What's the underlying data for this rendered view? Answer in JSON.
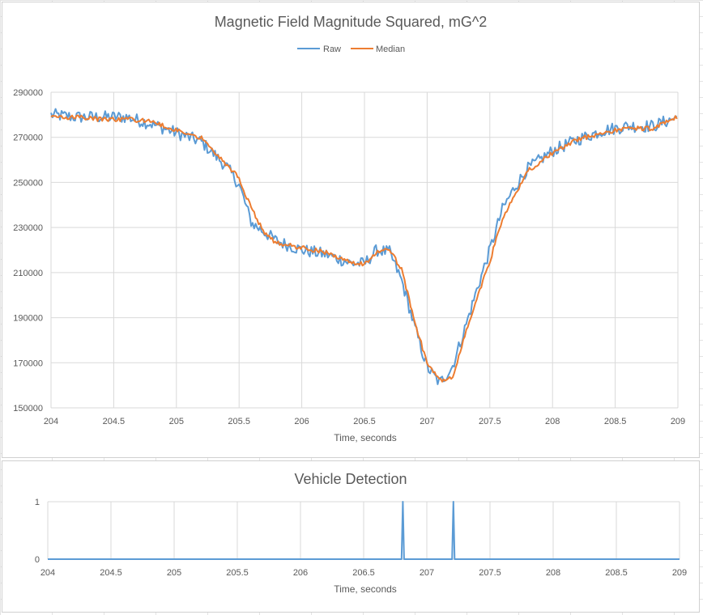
{
  "chart_data": [
    {
      "type": "line",
      "title": "Magnetic Field Magnitude Squared, mG^2",
      "xlabel": "Time, seconds",
      "ylabel": "",
      "xlim": [
        204,
        209
      ],
      "ylim": [
        150000,
        290000
      ],
      "xticks": [
        "204",
        "204.5",
        "205",
        "205.5",
        "206",
        "206.5",
        "207",
        "207.5",
        "208",
        "208.5",
        "209"
      ],
      "yticks": [
        "150000",
        "170000",
        "190000",
        "210000",
        "230000",
        "250000",
        "270000",
        "290000"
      ],
      "grid": true,
      "legend": "top-center",
      "series": [
        {
          "name": "Raw",
          "color": "#5b9bd5",
          "x": [
            204.0,
            204.2,
            204.4,
            204.6,
            204.8,
            205.0,
            205.2,
            205.4,
            205.5,
            205.6,
            205.8,
            206.0,
            206.2,
            206.4,
            206.5,
            206.6,
            206.7,
            206.8,
            206.9,
            207.0,
            207.1,
            207.2,
            207.3,
            207.4,
            207.5,
            207.6,
            207.7,
            207.8,
            208.0,
            208.2,
            208.4,
            208.6,
            208.8,
            209.0
          ],
          "y": [
            280000,
            279000,
            279000,
            279000,
            276000,
            272000,
            268000,
            257000,
            249000,
            232000,
            224000,
            220000,
            218000,
            214000,
            214000,
            220000,
            219000,
            206000,
            186000,
            168000,
            161000,
            168000,
            185000,
            203000,
            220000,
            238000,
            248000,
            256000,
            264000,
            269000,
            273000,
            275000,
            275000,
            279000
          ],
          "jitter": 2800
        },
        {
          "name": "Median",
          "color": "#ed7d31",
          "x": [
            204.0,
            204.2,
            204.4,
            204.6,
            204.8,
            205.0,
            205.2,
            205.3,
            205.5,
            205.6,
            205.7,
            205.8,
            206.0,
            206.2,
            206.4,
            206.5,
            206.6,
            206.7,
            206.8,
            206.9,
            207.0,
            207.1,
            207.2,
            207.3,
            207.4,
            207.5,
            207.6,
            207.7,
            207.8,
            208.0,
            208.2,
            208.4,
            208.6,
            208.8,
            209.0
          ],
          "y": [
            279000,
            279000,
            278000,
            278000,
            277000,
            273000,
            270000,
            264000,
            252000,
            238000,
            228000,
            223000,
            221000,
            219000,
            214000,
            214000,
            219000,
            220000,
            211000,
            188000,
            170000,
            162000,
            163000,
            182000,
            199000,
            215000,
            234000,
            244000,
            255000,
            263000,
            269000,
            272000,
            274000,
            274000,
            279000
          ],
          "jitter": 1000
        }
      ]
    },
    {
      "type": "line",
      "title": "Vehicle Detection",
      "xlabel": "Time, seconds",
      "ylabel": "",
      "xlim": [
        204,
        209
      ],
      "ylim": [
        0,
        1
      ],
      "xticks": [
        "204",
        "204.5",
        "205",
        "205.5",
        "206",
        "206.5",
        "207",
        "207.5",
        "208",
        "208.5",
        "209"
      ],
      "yticks": [
        "0",
        "1"
      ],
      "grid": true,
      "series": [
        {
          "name": "",
          "color": "#5b9bd5",
          "x": [
            204.0,
            206.8,
            206.81,
            206.82,
            207.2,
            207.21,
            207.22,
            209.0
          ],
          "y": [
            0,
            0,
            1,
            0,
            0,
            1,
            0,
            0
          ],
          "jitter": 0
        }
      ]
    }
  ]
}
